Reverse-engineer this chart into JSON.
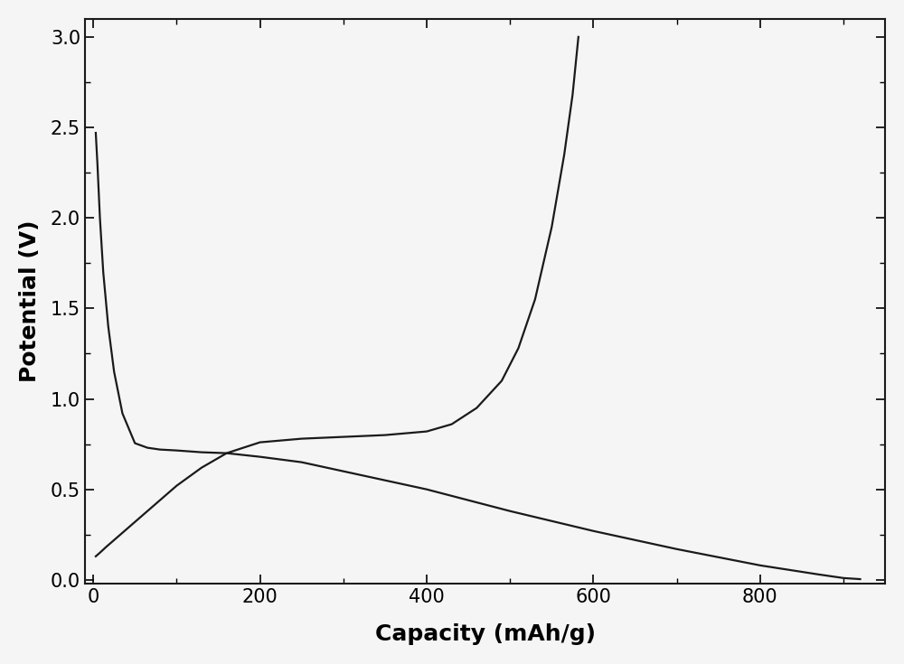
{
  "title": "",
  "xlabel": "Capacity (mAh/g)",
  "ylabel": "Potential (V)",
  "xlim": [
    -10,
    950
  ],
  "ylim": [
    -0.02,
    3.1
  ],
  "xticks": [
    0,
    200,
    400,
    600,
    800
  ],
  "yticks": [
    0.0,
    0.5,
    1.0,
    1.5,
    2.0,
    2.5,
    3.0
  ],
  "line_color": "#1a1a1a",
  "background_color": "#f5f5f5",
  "discharge_curve": {
    "x": [
      3,
      5,
      8,
      12,
      18,
      25,
      35,
      50,
      65,
      80,
      100,
      130,
      160,
      200,
      250,
      300,
      400,
      500,
      600,
      700,
      800,
      870,
      900,
      920
    ],
    "y": [
      2.47,
      2.3,
      2.0,
      1.7,
      1.4,
      1.15,
      0.92,
      0.755,
      0.73,
      0.72,
      0.715,
      0.705,
      0.7,
      0.68,
      0.65,
      0.6,
      0.5,
      0.38,
      0.27,
      0.17,
      0.08,
      0.03,
      0.01,
      0.004
    ]
  },
  "charge_curve": {
    "x": [
      3,
      8,
      15,
      25,
      40,
      60,
      80,
      100,
      130,
      160,
      200,
      250,
      300,
      350,
      400,
      430,
      460,
      490,
      510,
      530,
      550,
      565,
      575,
      582
    ],
    "y": [
      0.13,
      0.15,
      0.18,
      0.22,
      0.28,
      0.36,
      0.44,
      0.52,
      0.62,
      0.7,
      0.76,
      0.78,
      0.79,
      0.8,
      0.82,
      0.86,
      0.95,
      1.1,
      1.28,
      1.55,
      1.95,
      2.35,
      2.68,
      3.0
    ]
  },
  "xlabel_fontsize": 18,
  "ylabel_fontsize": 18,
  "tick_fontsize": 15,
  "xlabel_fontweight": "bold",
  "ylabel_fontweight": "bold",
  "linewidth": 1.6
}
